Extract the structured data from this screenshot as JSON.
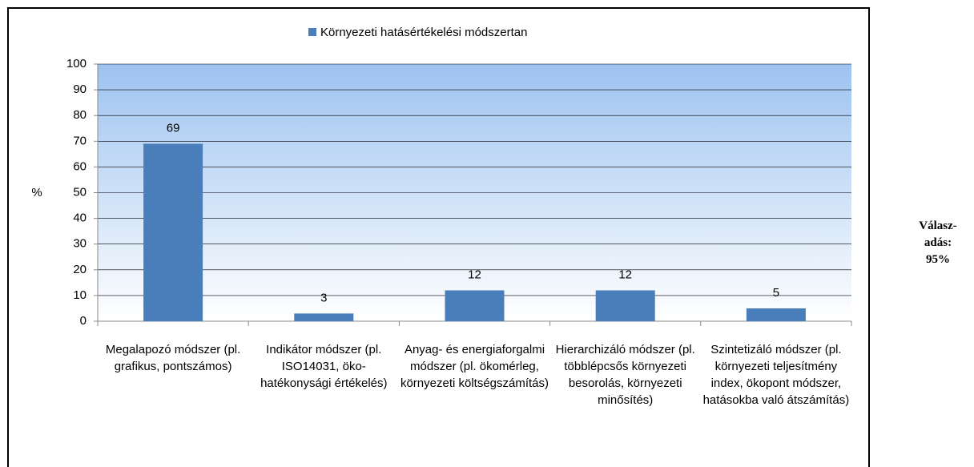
{
  "chart_data": {
    "type": "bar",
    "legend": "Környezeti hatásértékelési módszertan",
    "ylabel": "%",
    "categories": [
      "Megalapozó módszer (pl. grafikus, pontszámos)",
      "Indikátor módszer (pl. ISO14031, öko-hatékonysági értékelés)",
      "Anyag- és energiaforgalmi módszer (pl. ökomérleg, környezeti költségszámítás)",
      "Hierarchizáló módszer (pl. többlépcsős környezeti besorolás, környezeti minősítés)",
      "Szintetizáló módszer (pl. környezeti teljesítmény index, ökopont módszer, hatásokba való átszámítás)"
    ],
    "values": [
      69,
      3,
      12,
      12,
      5
    ],
    "color": "#4a7ebb",
    "ylim": [
      0,
      100
    ],
    "yticks": [
      0,
      10,
      20,
      30,
      40,
      50,
      60,
      70,
      80,
      90,
      100
    ],
    "grid": true,
    "annotation": "Válasz-adás: 95%"
  }
}
